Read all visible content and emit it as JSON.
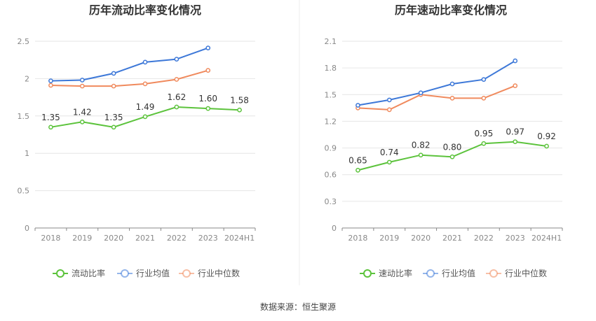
{
  "chart_data": [
    {
      "type": "line",
      "title": "历年流动比率变化情况",
      "categories": [
        "2018",
        "2019",
        "2020",
        "2021",
        "2022",
        "2023",
        "2024H1"
      ],
      "ylim": [
        0,
        2.5
      ],
      "yticks": [
        "0",
        "0.5",
        "1",
        "1.5",
        "2",
        "2.5"
      ],
      "grid": true,
      "legend_position": "bottom",
      "series": [
        {
          "name": "流动比率",
          "color": "#5cc33c",
          "values": [
            1.35,
            1.42,
            1.35,
            1.49,
            1.62,
            1.6,
            1.58
          ],
          "labels": [
            "1.35",
            "1.42",
            "1.35",
            "1.49",
            "1.62",
            "1.60",
            "1.58"
          ]
        },
        {
          "name": "行业均值",
          "color": "#3d78d8",
          "values": [
            1.97,
            1.98,
            2.07,
            2.22,
            2.26,
            2.41,
            null
          ]
        },
        {
          "name": "行业中位数",
          "color": "#f08a5d",
          "values": [
            1.91,
            1.9,
            1.9,
            1.93,
            1.99,
            2.11,
            null
          ]
        }
      ]
    },
    {
      "type": "line",
      "title": "历年速动比率变化情况",
      "categories": [
        "2018",
        "2019",
        "2020",
        "2021",
        "2022",
        "2023",
        "2024H1"
      ],
      "ylim": [
        0,
        2.1
      ],
      "yticks": [
        "0",
        "0.3",
        "0.6",
        "0.9",
        "1.2",
        "1.5",
        "1.8",
        "2.1"
      ],
      "grid": true,
      "legend_position": "bottom",
      "series": [
        {
          "name": "速动比率",
          "color": "#5cc33c",
          "values": [
            0.65,
            0.74,
            0.82,
            0.8,
            0.95,
            0.97,
            0.92
          ],
          "labels": [
            "0.65",
            "0.74",
            "0.82",
            "0.80",
            "0.95",
            "0.97",
            "0.92"
          ]
        },
        {
          "name": "行业均值",
          "color": "#3d78d8",
          "values": [
            1.38,
            1.44,
            1.52,
            1.62,
            1.67,
            1.88,
            null
          ]
        },
        {
          "name": "行业中位数",
          "color": "#f08a5d",
          "values": [
            1.35,
            1.33,
            1.5,
            1.46,
            1.46,
            1.6,
            null
          ]
        }
      ]
    }
  ],
  "source_text": "数据来源：恒生聚源"
}
